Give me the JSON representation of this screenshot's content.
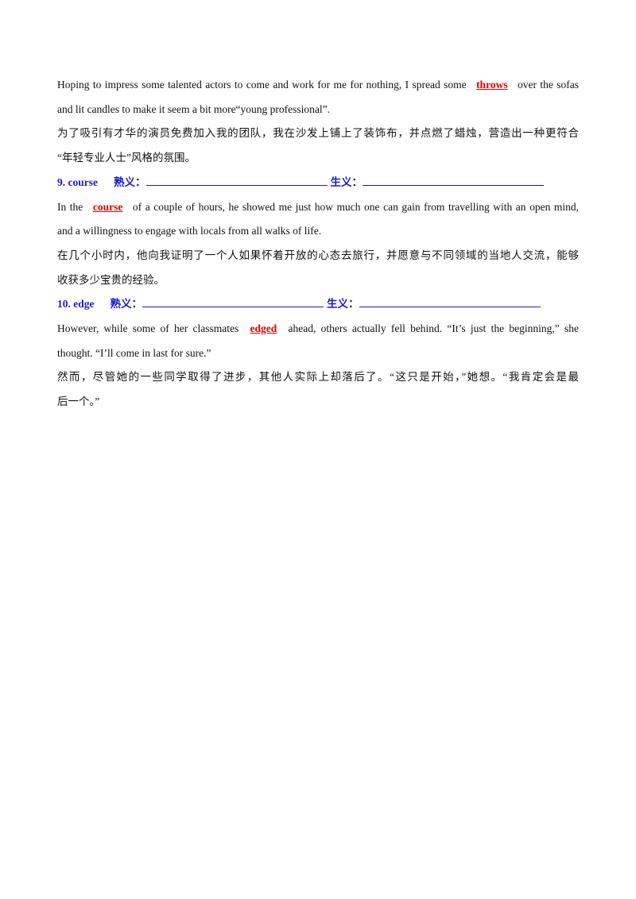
{
  "items": [
    {
      "english": [
        {
          "before": "Hoping to impress some talented actors to come and work for me for nothing, I spread some",
          "keyword": "throws",
          "after": "over the sofas"
        },
        {
          "text": "and lit candles to make it seem a bit more“young professional”."
        }
      ],
      "chinese": [
        "为了吸引有才华的演员免费加入我的团队，我在沙发上铺上了装饰布，并点燃了蜡烛，营造出一种更符合",
        "“年轻专业人士”风格的氛围。"
      ]
    },
    {
      "header": {
        "number": "9. course",
        "familiar": "熟义：",
        "new": "生义："
      },
      "english": [
        {
          "before": "In the",
          "keyword": "course",
          "after": "of a couple of hours, he showed me just how much one can gain from travelling with an open mind,"
        },
        {
          "text": "and a willingness to engage with locals from all walks of life."
        }
      ],
      "chinese": [
        "在几个小时内，他向我证明了一个人如果怀着开放的心态去旅行，并愿意与不同领域的当地人交流，能够",
        "收获多少宝贵的经验。"
      ]
    },
    {
      "header": {
        "number": "10. edge",
        "familiar": "熟义：",
        "new": "生义："
      },
      "english": [
        {
          "before": "However, while some of her classmates",
          "keyword": "edged",
          "after": "ahead, others actually fell behind. “It’s just the beginning,” she"
        },
        {
          "text": "thought. “I’ll come in last for sure.”"
        }
      ],
      "chinese": [
        "然而，尽管她的一些同学取得了进步，其他人实际上却落后了。“这只是开始，”她想。“我肯定会是最",
        "后一个。”"
      ]
    }
  ]
}
